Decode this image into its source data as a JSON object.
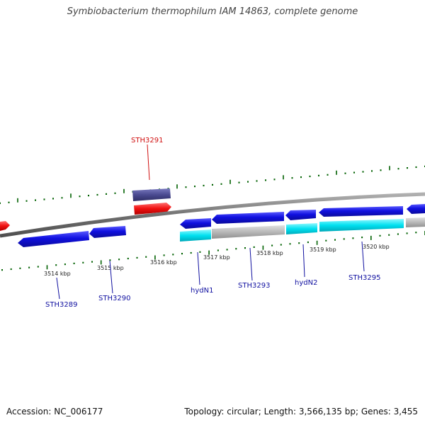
{
  "title": "Symbiobacterium thermophilum IAM 14863, complete genome",
  "footer": {
    "accession_label": "Accession:",
    "accession": "NC_006177",
    "topology_label": "Topology:",
    "topology": "circular",
    "length_label": "Length:",
    "length": "3,566,135 bp",
    "genes_label": "Genes:",
    "genes": "3,455"
  },
  "kbp_ticks": [
    "3514 kbp",
    "3515 kbp",
    "3516 kbp",
    "3517 kbp",
    "3518 kbp",
    "3519 kbp",
    "3520 kbp"
  ],
  "gene_labels": [
    "STH3291",
    "STH3289",
    "STH3290",
    "hydN1",
    "STH3293",
    "hydN2",
    "STH3295"
  ],
  "colors": {
    "forward_gene": "#1010e0",
    "reverse_gene_cyan": "#00e0f0",
    "reverse_gene_grey": "#b8b8b8",
    "highlight_gene": "#f01010",
    "highlight_bar": "#4a4a90",
    "highlight_label": "#d01010",
    "gene_label": "#1010a0",
    "axis": "#808080",
    "tick": "#006000"
  }
}
